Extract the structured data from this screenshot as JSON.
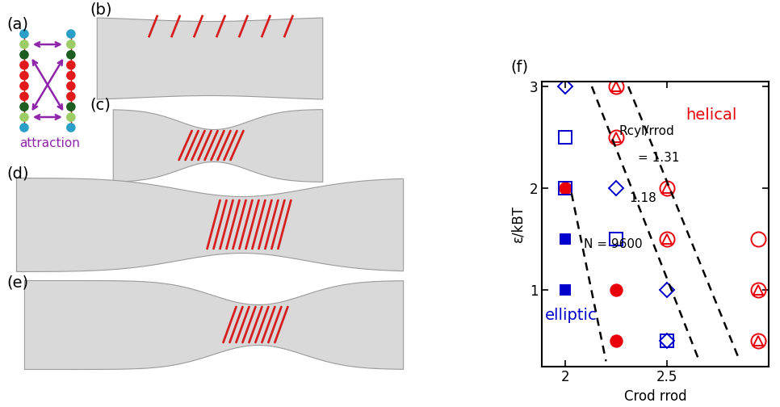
{
  "panels": {
    "labels": [
      "(a)",
      "(b)",
      "(c)",
      "(d)",
      "(e)",
      "(f)"
    ],
    "annotation": "attraction"
  },
  "chart_data": {
    "type": "scatter",
    "x_label": "Crod rrod",
    "y_label": "ε/kBT",
    "xlim": [
      1.885,
      3.0
    ],
    "ylim": [
      0.25,
      3.05
    ],
    "xticks": [
      2,
      2.5
    ],
    "yticks": [
      1,
      2,
      3
    ],
    "series": [
      {
        "color": "#e8000b",
        "marker": "filled_circle",
        "x": [
          2,
          2.25,
          2.25
        ],
        "values": [
          2,
          1,
          0.5
        ]
      },
      {
        "color": "#0000cc",
        "marker": "filled_square",
        "x": [
          2,
          2
        ],
        "values": [
          1.5,
          1
        ]
      },
      {
        "color": "#0000cc",
        "marker": "open_square",
        "x": [
          2,
          2,
          2.25,
          2.5
        ],
        "values": [
          2.5,
          2,
          1.5,
          0.5
        ]
      },
      {
        "color": "#e8000b",
        "marker": "open_circle",
        "x": [
          2.25,
          2.25,
          2.5,
          2.5,
          2.95,
          2.95,
          2.95
        ],
        "values": [
          3,
          2.5,
          2,
          1.5,
          1.5,
          1,
          0.5
        ]
      },
      {
        "color": "#e8000b",
        "marker": "open_triangle",
        "x": [
          2.25,
          2.25,
          2.5,
          2.5,
          2.95,
          2.95
        ],
        "values": [
          3,
          2.5,
          2,
          1.5,
          1,
          0.5
        ]
      },
      {
        "color": "#0000cc",
        "marker": "open_diamond",
        "x": [
          2,
          2.25,
          2.5,
          2.5
        ],
        "values": [
          3,
          2,
          1,
          0.5
        ]
      }
    ],
    "boundaries": [
      {
        "x": [
          2.03,
          2.2
        ],
        "values": [
          1.95,
          0.3
        ]
      },
      {
        "x": [
          2.13,
          2.66
        ],
        "values": [
          3.0,
          0.3
        ]
      },
      {
        "x": [
          2.31,
          2.86
        ],
        "values": [
          3.0,
          0.3
        ]
      }
    ],
    "annotations": [
      {
        "text": "N = 9600",
        "color": "#000000"
      },
      {
        "text": "1.18",
        "color": "#000000"
      },
      {
        "text": "Rcyl/rrod",
        "color": "#000000"
      },
      {
        "text": "= 1.31",
        "color": "#000000"
      },
      {
        "text": "helical",
        "color": "#e8000b"
      },
      {
        "text": "elliptic",
        "color": "#0000cc"
      }
    ]
  }
}
